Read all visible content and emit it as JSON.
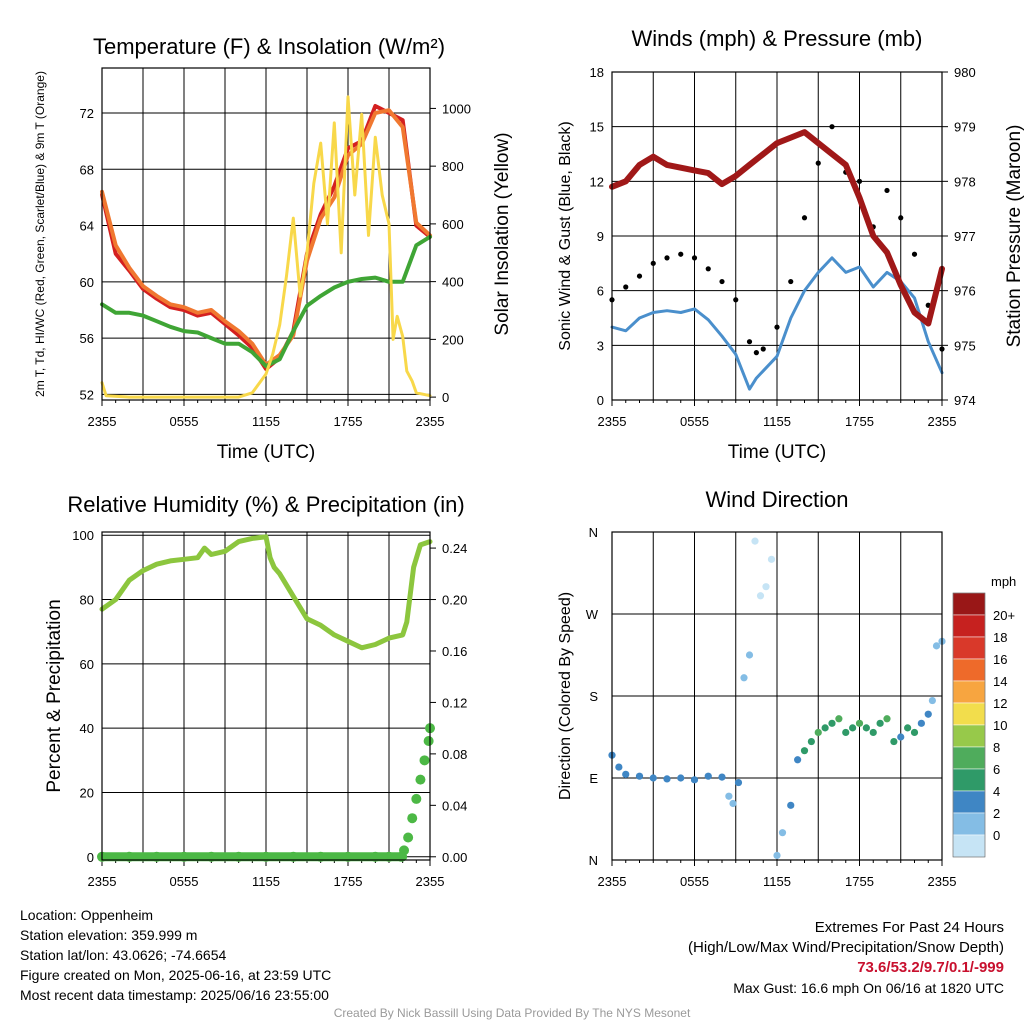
{
  "chart_data": [
    {
      "type": "line",
      "title": "Temperature (F) & Insolation (W/m²)",
      "xlabel": "Time (UTC)",
      "ylabel_left": "2m T, Td, HI/WC (Red, Green, Scarlet/Blue) & 9m T (Orange)",
      "ylabel_right": "Solar Insolation (Yellow)",
      "x_ticks": [
        "2355",
        "0555",
        "1155",
        "1755",
        "2355"
      ],
      "ylim": [
        51.6,
        75.2
      ],
      "y_ticks": [
        52,
        56,
        60,
        64,
        68,
        72
      ],
      "ylim_right": [
        -10,
        1140
      ],
      "y_ticks_right": [
        0,
        200,
        400,
        600,
        800,
        1000
      ],
      "series": [
        {
          "name": "2m T",
          "color": "#d42020",
          "axis": "left",
          "x": [
            0,
            1,
            2,
            3,
            4,
            5,
            6,
            7,
            8,
            9,
            10,
            11,
            12,
            13,
            14,
            15,
            16,
            17,
            18,
            19,
            20,
            21,
            22,
            23,
            24
          ],
          "y": [
            66.2,
            62.0,
            60.8,
            59.5,
            58.8,
            58.2,
            58.0,
            57.6,
            57.8,
            57.0,
            56.2,
            55.3,
            53.8,
            54.6,
            56.5,
            62.0,
            64.8,
            66.8,
            69.5,
            70.0,
            72.5,
            72.0,
            71.5,
            64.0,
            63.2
          ]
        },
        {
          "name": "9m T",
          "color": "#f07830",
          "axis": "left",
          "x": [
            0,
            1,
            2,
            3,
            4,
            5,
            6,
            7,
            8,
            9,
            10,
            11,
            12,
            13,
            14,
            15,
            16,
            17,
            18,
            19,
            20,
            21,
            22,
            23,
            24
          ],
          "y": [
            66.4,
            62.6,
            61.0,
            59.7,
            59.0,
            58.4,
            58.2,
            57.8,
            58.0,
            57.2,
            56.5,
            55.6,
            54.1,
            54.8,
            56.2,
            61.5,
            64.5,
            66.0,
            69.0,
            69.8,
            72.0,
            72.2,
            71.0,
            64.2,
            63.3
          ]
        },
        {
          "name": "2m Td",
          "color": "#3fa535",
          "axis": "left",
          "x": [
            0,
            1,
            2,
            3,
            4,
            5,
            6,
            7,
            8,
            9,
            10,
            11,
            12,
            13,
            14,
            15,
            16,
            17,
            18,
            19,
            20,
            21,
            22,
            23,
            24
          ],
          "y": [
            58.4,
            57.8,
            57.8,
            57.6,
            57.2,
            56.8,
            56.5,
            56.4,
            56.0,
            55.6,
            55.6,
            55.0,
            54.0,
            54.5,
            56.5,
            58.3,
            59.0,
            59.6,
            60.0,
            60.2,
            60.3,
            60.0,
            60.0,
            62.6,
            63.2
          ]
        },
        {
          "name": "Solar Insolation",
          "color": "#f8d84a",
          "axis": "right",
          "x": [
            0,
            0.3,
            2,
            4,
            6,
            8,
            9,
            10,
            11,
            12,
            12.5,
            13,
            13.5,
            14,
            14.5,
            15,
            15.5,
            16,
            16.5,
            17,
            17.5,
            18,
            18.5,
            19,
            19.5,
            20,
            20.5,
            21,
            21.3,
            21.6,
            22,
            22.3,
            22.7,
            23,
            24
          ],
          "y": [
            50,
            5,
            0,
            0,
            0,
            0,
            0,
            0,
            15,
            80,
            150,
            250,
            420,
            620,
            350,
            500,
            740,
            880,
            600,
            950,
            500,
            1040,
            700,
            980,
            560,
            900,
            700,
            600,
            200,
            280,
            210,
            90,
            55,
            15,
            5
          ]
        }
      ]
    },
    {
      "type": "scatter",
      "title": "Winds (mph) & Pressure (mb)",
      "xlabel": "Time (UTC)",
      "ylabel_left": "Sonic Wind & Gust (Blue, Black)",
      "ylabel_right": "Station Pressure (Maroon)",
      "x_ticks": [
        "2355",
        "0555",
        "1155",
        "1755",
        "2355"
      ],
      "ylim": [
        0,
        18
      ],
      "y_ticks": [
        0,
        3,
        6,
        9,
        12,
        15,
        18
      ],
      "ylim_right": [
        974,
        980
      ],
      "y_ticks_right": [
        974,
        975,
        976,
        977,
        978,
        979,
        980
      ],
      "series": [
        {
          "name": "Sonic Wind",
          "color": "#4a8fcc",
          "axis": "left",
          "x": [
            0,
            1,
            2,
            3,
            4,
            5,
            6,
            7,
            8,
            9,
            10,
            10.5,
            11,
            12,
            13,
            14,
            15,
            16,
            17,
            18,
            19,
            20,
            21,
            22,
            23,
            24
          ],
          "y": [
            4.0,
            3.8,
            4.5,
            4.8,
            4.9,
            4.8,
            5.0,
            4.4,
            3.5,
            2.5,
            0.6,
            1.2,
            1.6,
            2.4,
            4.5,
            6.0,
            7.0,
            7.8,
            7.0,
            7.3,
            6.2,
            7.0,
            6.5,
            5.6,
            3.2,
            1.5
          ]
        },
        {
          "name": "Gust",
          "color": "#000000",
          "axis": "left",
          "x": [
            0,
            1,
            2,
            3,
            4,
            5,
            6,
            7,
            8,
            9,
            10,
            10.5,
            11,
            12,
            13,
            14,
            15,
            16,
            17,
            18,
            19,
            20,
            21,
            22,
            23,
            24
          ],
          "y": [
            5.5,
            6.2,
            6.8,
            7.5,
            7.8,
            8.0,
            7.8,
            7.2,
            6.5,
            5.5,
            3.2,
            2.6,
            2.8,
            4.0,
            6.5,
            10.0,
            13.0,
            15.0,
            12.5,
            12.0,
            9.5,
            11.5,
            10.0,
            8.0,
            5.2,
            2.8
          ]
        },
        {
          "name": "Station Pressure",
          "color": "#a01818",
          "axis": "right",
          "x": [
            0,
            1,
            2,
            3,
            4,
            5,
            6,
            7,
            8,
            9,
            10,
            11,
            12,
            13,
            14,
            14.5,
            15,
            16,
            17,
            18,
            19,
            20,
            21,
            22,
            23,
            24
          ],
          "y": [
            977.9,
            978.0,
            978.3,
            978.45,
            978.3,
            978.25,
            978.2,
            978.15,
            977.95,
            978.1,
            978.3,
            978.5,
            978.7,
            978.8,
            978.9,
            978.8,
            978.7,
            978.5,
            978.3,
            977.7,
            977.0,
            976.7,
            976.1,
            975.6,
            975.4,
            976.4
          ]
        }
      ]
    },
    {
      "type": "line",
      "title": "Relative Humidity (%) & Precipitation (in)",
      "ylabel_left": "Percent & Precipitation",
      "x_ticks": [
        "2355",
        "0555",
        "1155",
        "1755",
        "2355"
      ],
      "ylim": [
        -1,
        101
      ],
      "y_ticks": [
        0,
        20,
        40,
        60,
        80,
        100
      ],
      "ylim_right": [
        -0.0025,
        0.2525
      ],
      "y_ticks_right": [
        "0.00",
        "0.04",
        "0.08",
        "0.12",
        "0.16",
        "0.20",
        "0.24"
      ],
      "series": [
        {
          "name": "Relative Humidity",
          "color": "#8cc63e",
          "axis": "left",
          "x": [
            0,
            1,
            2,
            3,
            4,
            5,
            6,
            7,
            7.5,
            8,
            9,
            10,
            11,
            12,
            12.3,
            12.6,
            13,
            14,
            15,
            16,
            17,
            18,
            19,
            20,
            21,
            22,
            22.3,
            22.8,
            23.3,
            24
          ],
          "y": [
            77,
            80,
            86,
            89,
            91,
            92,
            92.5,
            93,
            96,
            94,
            95,
            98,
            99,
            99.5,
            93,
            90,
            88,
            81,
            74,
            72,
            69,
            67,
            65,
            66,
            68,
            69,
            73,
            90,
            97,
            98
          ]
        },
        {
          "name": "Precipitation",
          "color": "#4cb845",
          "axis": "right",
          "x": [
            0,
            2,
            4,
            6,
            8,
            10,
            12,
            14,
            16,
            18,
            20,
            21,
            21.9,
            22.1,
            22.4,
            22.7,
            23,
            23.3,
            23.6,
            23.9,
            24
          ],
          "y": [
            0,
            0,
            0,
            0,
            0,
            0,
            0,
            0,
            0,
            0,
            0,
            0,
            0,
            0.005,
            0.015,
            0.03,
            0.045,
            0.06,
            0.075,
            0.09,
            0.1
          ]
        }
      ]
    },
    {
      "type": "scatter",
      "title": "Wind Direction",
      "ylabel_left": "Direction (Colored By Speed)",
      "x_ticks": [
        "2355",
        "0555",
        "1155",
        "1755",
        "2355"
      ],
      "ylim": [
        0,
        360
      ],
      "y_ticks": [
        "N",
        "E",
        "S",
        "W",
        "N"
      ],
      "colorbar_unit": "mph",
      "colorbar_labels": [
        "0",
        "2",
        "4",
        "6",
        "8",
        "10",
        "12",
        "14",
        "16",
        "18",
        "20+"
      ],
      "colorbar_colors": [
        "#c6e4f5",
        "#84bde5",
        "#3f86c4",
        "#2f9a68",
        "#4fac5c",
        "#97c94a",
        "#f2dd4c",
        "#f7a540",
        "#ee6a2a",
        "#d9392a",
        "#c6211f",
        "#991717"
      ],
      "series": [
        {
          "name": "Direction",
          "axis": "left",
          "x": [
            0,
            0.5,
            1,
            2,
            3,
            4,
            5,
            6,
            7,
            8,
            8.5,
            8.8,
            9.2,
            9.6,
            10,
            10.4,
            10.8,
            11.2,
            11.6,
            12,
            12.4,
            13,
            13.5,
            14,
            14.5,
            15,
            15.5,
            16,
            16.5,
            17,
            17.5,
            18,
            18.5,
            19,
            19.5,
            20,
            20.5,
            21,
            21.5,
            22,
            22.5,
            23,
            23.3,
            23.6,
            24
          ],
          "y": [
            115,
            102,
            94,
            92,
            90,
            89,
            90,
            88,
            92,
            91,
            70,
            62,
            85,
            200,
            225,
            350,
            290,
            300,
            330,
            5,
            30,
            60,
            110,
            120,
            130,
            140,
            145,
            150,
            155,
            140,
            145,
            150,
            145,
            140,
            150,
            155,
            130,
            135,
            145,
            140,
            150,
            160,
            175,
            235,
            240
          ],
          "speed": [
            4,
            4,
            4,
            4,
            4,
            4,
            4,
            4,
            4,
            4,
            3,
            3,
            4,
            2,
            2,
            1,
            1,
            1,
            1,
            2,
            3,
            4,
            5,
            6,
            7,
            8,
            7,
            6,
            9,
            7,
            6,
            8,
            7,
            6,
            7,
            8,
            6,
            5,
            6,
            7,
            5,
            4,
            3,
            2,
            2
          ]
        }
      ]
    }
  ],
  "info": {
    "location": "Location: Oppenheim",
    "elevation": "Station elevation: 359.999 m",
    "latlon": "Station lat/lon: 43.0626; -74.6654",
    "created": "Figure created on Mon, 2025-06-16, at 23:59 UTC",
    "recent": "Most recent data timestamp: 2025/06/16 23:55:00"
  },
  "extremes": {
    "title": "Extremes For Past 24 Hours",
    "subtitle": "(High/Low/Max Wind/Precipitation/Snow Depth)",
    "values": "73.6/53.2/9.7/0.1/-999",
    "gust": "Max Gust: 16.6 mph On 06/16 at 1820 UTC"
  },
  "credit": "Created By Nick Bassill Using Data Provided By The NYS Mesonet"
}
